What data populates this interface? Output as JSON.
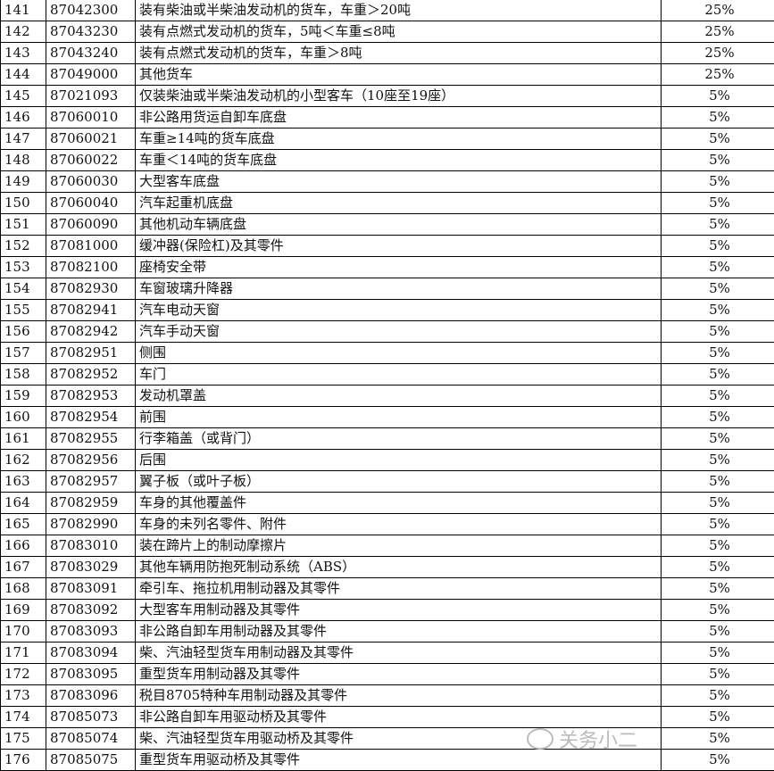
{
  "rows": [
    [
      "141",
      "87042300",
      "装有柴油或半柴油发动机的货车，车重＞20吨",
      "25%"
    ],
    [
      "142",
      "87043230",
      "装有点燃式发动机的货车，5吨＜车重≤8吨",
      "25%"
    ],
    [
      "143",
      "87043240",
      "装有点燃式发动机的货车，车重＞8吨",
      "25%"
    ],
    [
      "144",
      "87049000",
      "其他货车",
      "25%"
    ],
    [
      "145",
      "87021093",
      "仅装柴油或半柴油发动机的小型客车（10座至19座）",
      "5%"
    ],
    [
      "146",
      "87060010",
      "非公路用货运自卸车底盘",
      "5%"
    ],
    [
      "147",
      "87060021",
      "车重≥14吨的货车底盘",
      "5%"
    ],
    [
      "148",
      "87060022",
      "车重＜14吨的货车底盘",
      "5%"
    ],
    [
      "149",
      "87060030",
      "大型客车底盘",
      "5%"
    ],
    [
      "150",
      "87060040",
      "汽车起重机底盘",
      "5%"
    ],
    [
      "151",
      "87060090",
      "其他机动车辆底盘",
      "5%"
    ],
    [
      "152",
      "87081000",
      "缓冲器(保险杠)及其零件",
      "5%"
    ],
    [
      "153",
      "87082100",
      "座椅安全带",
      "5%"
    ],
    [
      "154",
      "87082930",
      "车窗玻璃升降器",
      "5%"
    ],
    [
      "155",
      "87082941",
      "汽车电动天窗",
      "5%"
    ],
    [
      "156",
      "87082942",
      "汽车手动天窗",
      "5%"
    ],
    [
      "157",
      "87082951",
      "侧围",
      "5%"
    ],
    [
      "158",
      "87082952",
      "车门",
      "5%"
    ],
    [
      "159",
      "87082953",
      "发动机罩盖",
      "5%"
    ],
    [
      "160",
      "87082954",
      "前围",
      "5%"
    ],
    [
      "161",
      "87082955",
      "行李箱盖（或背门）",
      "5%"
    ],
    [
      "162",
      "87082956",
      "后围",
      "5%"
    ],
    [
      "163",
      "87082957",
      "翼子板（或叶子板）",
      "5%"
    ],
    [
      "164",
      "87082959",
      "车身的其他覆盖件",
      "5%"
    ],
    [
      "165",
      "87082990",
      "车身的未列名零件、附件",
      "5%"
    ],
    [
      "166",
      "87083010",
      "装在蹄片上的制动摩擦片",
      "5%"
    ],
    [
      "167",
      "87083029",
      "其他车辆用防抱死制动系统（ABS）",
      "5%"
    ],
    [
      "168",
      "87083091",
      "牵引车、拖拉机用制动器及其零件",
      "5%"
    ],
    [
      "169",
      "87083092",
      "大型客车用制动器及其零件",
      "5%"
    ],
    [
      "170",
      "87083093",
      "非公路自卸车用制动器及其零件",
      "5%"
    ],
    [
      "171",
      "87083094",
      "柴、汽油轻型货车用制动器及其零件",
      "5%"
    ],
    [
      "172",
      "87083095",
      "重型货车用制动器及其零件",
      "5%"
    ],
    [
      "173",
      "87083096",
      "税目8705特种车用制动器及其零件",
      "5%"
    ],
    [
      "174",
      "87085073",
      "非公路自卸车用驱动桥及其零件",
      "5%"
    ],
    [
      "175",
      "87085074",
      "柴、汽油轻型货车用驱动桥及其零件",
      "5%"
    ],
    [
      "176",
      "87085075",
      "重型货车用驱动桥及其零件",
      "5%"
    ]
  ],
  "watermark": "关务小二"
}
